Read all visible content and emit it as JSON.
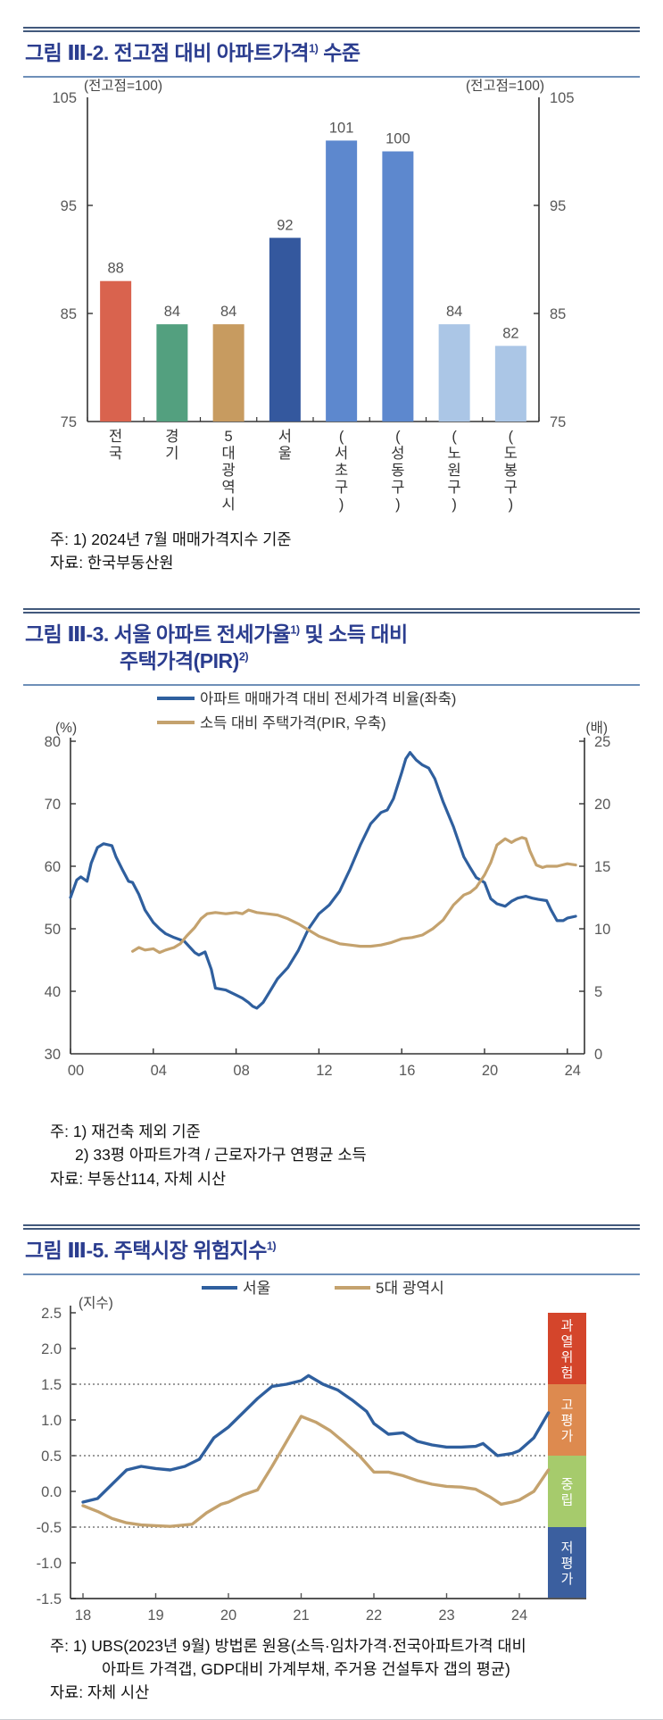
{
  "page": {
    "figure2": {
      "title_prefix": "그림 Ⅲ-2. 전고점 대비 아파트가격",
      "title_sup": "1)",
      "title_suffix": " 수준",
      "notes": [
        "주: 1) 2024년 7월 매매가격지수 기준"
      ],
      "source": "자료: 한국부동산원"
    },
    "figure3": {
      "title_line1_prefix": "그림 Ⅲ-3. 서울 아파트 전세가율",
      "title_line1_sup": "1)",
      "title_line1_suffix": " 및 소득 대비",
      "title_line2_prefix": "주택가격(PIR)",
      "title_line2_sup": "2)",
      "notes": [
        "주: 1) 재건축 제외 기준",
        "2) 33평 아파트가격 / 근로자가구 연평균 소득"
      ],
      "source": "자료: 부동산114, 자체 시산"
    },
    "figure5": {
      "title_prefix": "그림 Ⅲ-5. 주택시장 위험지수",
      "title_sup": "1)",
      "notes": [
        "주: 1) UBS(2023년 9월) 방법론 원용(소득·임차가격·전국아파트가격 대비",
        "아파트 가격갭, GDP대비 가계부채, 주거용 건설투자 갭의 평균)"
      ],
      "source": "자료: 자체 시산"
    }
  },
  "chart_data": [
    {
      "type": "bar",
      "title": "전고점 대비 아파트가격 수준",
      "unit_left": "(전고점=100)",
      "unit_right": "(전고점=100)",
      "categories": [
        "전국",
        "경기",
        "5대광역시",
        "서울",
        "(서초구)",
        "(성동구)",
        "(노원구)",
        "(도봉구)"
      ],
      "values": [
        88,
        84,
        84,
        92,
        101,
        100,
        84,
        82
      ],
      "bar_colors": [
        "#d9634e",
        "#53a07f",
        "#c79b60",
        "#34589e",
        "#5d88ce",
        "#5d88ce",
        "#abc6e6",
        "#abc6e6"
      ],
      "ylim": [
        75,
        105
      ],
      "yticks": [
        75,
        85,
        95,
        105
      ]
    },
    {
      "type": "line",
      "title": "서울 아파트 전세가율 및 소득 대비 주택가격(PIR)",
      "unit_left": "(%)",
      "unit_right": "(배)",
      "left_ylim": [
        30,
        80
      ],
      "left_yticks": [
        30,
        40,
        50,
        60,
        70,
        80
      ],
      "right_ylim": [
        0,
        25
      ],
      "right_yticks": [
        0,
        5,
        10,
        15,
        20,
        25
      ],
      "x_base_year": 2000,
      "xticks": [
        {
          "x": 0,
          "label": "00"
        },
        {
          "x": 4,
          "label": "04"
        },
        {
          "x": 8,
          "label": "08"
        },
        {
          "x": 12,
          "label": "12"
        },
        {
          "x": 16,
          "label": "16"
        },
        {
          "x": 20,
          "label": "20"
        },
        {
          "x": 24,
          "label": "24"
        }
      ],
      "series": [
        {
          "name": "아파트 매매가격 대비 전세가격 비율(좌축)",
          "axis": "left",
          "color": "#2f5f9e",
          "x": [
            0,
            0.3,
            0.5,
            0.8,
            1,
            1.3,
            1.6,
            2,
            2.2,
            2.5,
            2.8,
            3,
            3.3,
            3.6,
            4,
            4.3,
            4.6,
            5,
            5.5,
            6,
            6.2,
            6.5,
            6.8,
            7,
            7.5,
            8,
            8.3,
            8.6,
            8.8,
            9,
            9.3,
            9.6,
            10,
            10.5,
            11,
            11.5,
            12,
            12.5,
            13,
            13.5,
            14,
            14.5,
            15,
            15.3,
            15.6,
            16,
            16.2,
            16.4,
            16.7,
            17,
            17.3,
            17.6,
            18,
            18.5,
            19,
            19.3,
            19.6,
            20,
            20.3,
            20.6,
            21,
            21.3,
            21.6,
            22,
            22.3,
            22.6,
            23,
            23.2,
            23.5,
            23.8,
            24,
            24.4
          ],
          "y": [
            55,
            57.8,
            58.3,
            57.6,
            60.5,
            63,
            63.6,
            63.3,
            61.5,
            59.5,
            57.6,
            57.4,
            55.5,
            53,
            51,
            50,
            49.2,
            48.6,
            48,
            46.2,
            45.8,
            46.3,
            43.5,
            40.5,
            40.2,
            39.4,
            38.9,
            38.2,
            37.6,
            37.3,
            38.2,
            39.8,
            42,
            43.8,
            46.5,
            50,
            52.4,
            53.8,
            56,
            59.5,
            63.4,
            66.8,
            68.6,
            69,
            70.8,
            75,
            77.2,
            78.2,
            77,
            76.2,
            75.7,
            74,
            70.3,
            66.3,
            61.5,
            59.8,
            58.2,
            57.4,
            54.8,
            54,
            53.6,
            54.4,
            54.9,
            55.2,
            54.9,
            54.7,
            54.5,
            53.1,
            51.3,
            51.3,
            51.7,
            52
          ]
        },
        {
          "name": "소득 대비 주택가격(PIR, 우축)",
          "axis": "right",
          "color": "#c4a26e",
          "x": [
            3,
            3.3,
            3.6,
            4,
            4.3,
            4.6,
            5,
            5.3,
            5.6,
            6,
            6.3,
            6.6,
            7,
            7.5,
            8,
            8.3,
            8.6,
            9,
            9.5,
            10,
            10.5,
            11,
            11.5,
            12,
            12.5,
            13,
            13.5,
            14,
            14.5,
            15,
            15.5,
            16,
            16.5,
            17,
            17.5,
            18,
            18.5,
            19,
            19.3,
            19.6,
            20,
            20.3,
            20.6,
            21,
            21.3,
            21.5,
            21.8,
            22,
            22.2,
            22.5,
            22.8,
            23,
            23.5,
            24,
            24.4
          ],
          "y": [
            8.2,
            8.5,
            8.3,
            8.4,
            8.1,
            8.3,
            8.5,
            8.8,
            9.4,
            10.1,
            10.8,
            11.2,
            11.3,
            11.2,
            11.3,
            11.2,
            11.5,
            11.3,
            11.2,
            11.1,
            10.8,
            10.4,
            9.9,
            9.4,
            9.1,
            8.8,
            8.7,
            8.6,
            8.6,
            8.7,
            8.9,
            9.2,
            9.3,
            9.5,
            10,
            10.7,
            11.9,
            12.7,
            12.9,
            13.3,
            14.3,
            15.3,
            16.7,
            17.2,
            16.9,
            17.1,
            17.3,
            17.2,
            16.2,
            15.1,
            14.9,
            15,
            15,
            15.2,
            15.1
          ]
        }
      ]
    },
    {
      "type": "line",
      "title": "주택시장 위험지수",
      "unit": "(지수)",
      "ylim": [
        -1.5,
        2.5
      ],
      "yticks": [
        2.5,
        2.0,
        1.5,
        1.0,
        0.5,
        0.0,
        -0.5,
        -1.0,
        -1.5
      ],
      "ref_lines": [
        1.5,
        0.5,
        -0.5
      ],
      "xticks": [
        18,
        19,
        20,
        21,
        22,
        23,
        24
      ],
      "series": [
        {
          "name": "서울",
          "color": "#2f5f9e",
          "x": [
            18,
            18.2,
            18.4,
            18.6,
            18.8,
            19,
            19.2,
            19.4,
            19.6,
            19.8,
            20,
            20.2,
            20.4,
            20.6,
            20.8,
            21,
            21.1,
            21.3,
            21.5,
            21.7,
            21.9,
            22,
            22.2,
            22.4,
            22.6,
            22.8,
            23,
            23.2,
            23.4,
            23.5,
            23.7,
            23.9,
            24,
            24.2,
            24.4
          ],
          "y": [
            -0.15,
            -0.1,
            0.1,
            0.3,
            0.35,
            0.32,
            0.3,
            0.35,
            0.45,
            0.75,
            0.9,
            1.1,
            1.3,
            1.47,
            1.5,
            1.55,
            1.62,
            1.5,
            1.42,
            1.28,
            1.12,
            0.95,
            0.8,
            0.82,
            0.7,
            0.65,
            0.62,
            0.62,
            0.63,
            0.67,
            0.5,
            0.53,
            0.57,
            0.75,
            1.1
          ]
        },
        {
          "name": "5대 광역시",
          "color": "#c4a26e",
          "x": [
            18,
            18.2,
            18.4,
            18.6,
            18.8,
            19,
            19.2,
            19.5,
            19.7,
            19.9,
            20,
            20.2,
            20.4,
            20.6,
            20.8,
            21,
            21.2,
            21.4,
            21.6,
            21.8,
            22,
            22.2,
            22.4,
            22.6,
            22.8,
            23,
            23.2,
            23.4,
            23.6,
            23.75,
            23.9,
            24,
            24.2,
            24.4
          ],
          "y": [
            -0.2,
            -0.28,
            -0.38,
            -0.44,
            -0.47,
            -0.48,
            -0.49,
            -0.46,
            -0.3,
            -0.18,
            -0.15,
            -0.05,
            0.02,
            0.35,
            0.7,
            1.05,
            0.97,
            0.85,
            0.68,
            0.5,
            0.27,
            0.27,
            0.22,
            0.15,
            0.1,
            0.07,
            0.06,
            0.03,
            -0.08,
            -0.18,
            -0.15,
            -0.12,
            0.0,
            0.3
          ]
        }
      ],
      "zones": [
        {
          "label": "과열위험",
          "color": "#d4452b",
          "from": 1.5,
          "to": 2.5
        },
        {
          "label": "고평가",
          "color": "#dd8a4f",
          "from": 0.5,
          "to": 1.5
        },
        {
          "label": "중립",
          "color": "#a6cb6c",
          "from": -0.5,
          "to": 0.5
        },
        {
          "label": "저평가",
          "color": "#3b5f9f",
          "from": -1.5,
          "to": -0.5
        }
      ]
    }
  ]
}
